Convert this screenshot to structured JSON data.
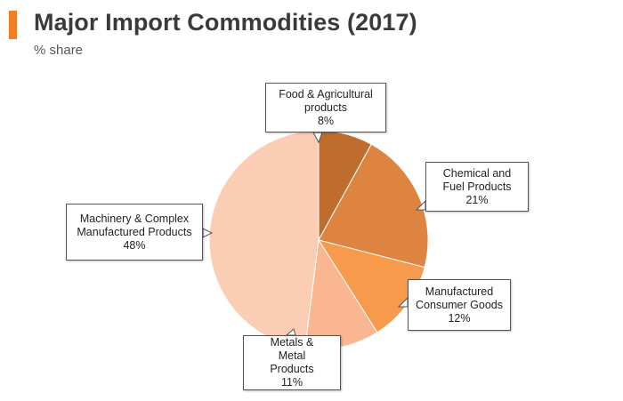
{
  "header": {
    "title": "Major Import Commodities (2017)",
    "subtitle": "% share",
    "accent_color": "#f07e26"
  },
  "chart_data": {
    "type": "pie",
    "title": "Major Import Commodities (2017)",
    "subtitle": "% share",
    "unit": "%",
    "slices": [
      {
        "label": "Food & Agricultural products",
        "value": 8,
        "value_label": "8%",
        "color": "#bf6d2e"
      },
      {
        "label": "Chemical and Fuel Products",
        "value": 21,
        "value_label": "21%",
        "color": "#dd8440"
      },
      {
        "label": "Manufactured Consumer Goods",
        "value": 12,
        "value_label": "12%",
        "color": "#f79a4b"
      },
      {
        "label": "Metals & Metal Products",
        "value": 11,
        "value_label": "11%",
        "color": "#f9b690"
      },
      {
        "label": "Machinery & Complex Manufactured Products",
        "value": 48,
        "value_label": "48%",
        "color": "#fccdb5"
      }
    ]
  }
}
